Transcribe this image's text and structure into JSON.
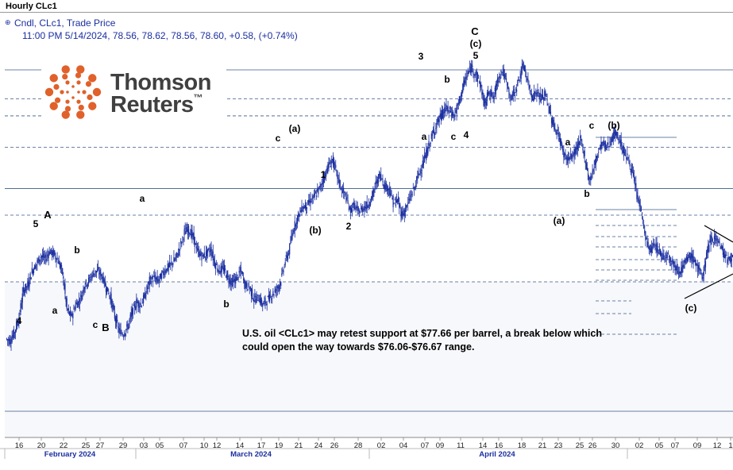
{
  "window": {
    "title": "Hourly CLc1"
  },
  "legend": {
    "line1": "Cndl, CLc1, Trade Price",
    "line2": "11:00 PM 5/14/2024, 78.56, 78.62, 78.56, 78.60, +0.58, (+0.74%)"
  },
  "logo": {
    "line1": "Thomson",
    "line2": "Reuters",
    "tm": "™"
  },
  "annotation": "U.S. oil <CLc1> may retest support at $77.66 per barrel, a break below which could open the way towards $76.06-$76.67 range.",
  "colors": {
    "candle": "#1b2fa0",
    "grid": "#3a5a8a",
    "logo_orange": "#e0612a"
  },
  "chart_data": {
    "type": "line",
    "title": "Hourly CLc1",
    "xlabel": "",
    "ylabel": "",
    "day_ticks": [
      "16",
      "20",
      "22",
      "25",
      "27",
      "29",
      "03",
      "05",
      "07",
      "10",
      "12",
      "14",
      "17",
      "19",
      "21",
      "24",
      "26",
      "28",
      "02",
      "04",
      "07",
      "09",
      "11",
      "14",
      "16",
      "18",
      "21",
      "23",
      "25",
      "26",
      "30",
      "02",
      "05",
      "07",
      "09",
      "12",
      "1"
    ],
    "month_labels": [
      "February 2024",
      "March 2024",
      "April 2024"
    ],
    "wave_labels": [
      "4",
      "5",
      "A",
      "a",
      "b",
      "c",
      "B",
      "a",
      "b",
      "c",
      "(a)",
      "1",
      "(b)",
      "2",
      "3",
      "a",
      "b",
      "c",
      "4",
      "C",
      "(c)",
      "5",
      "(a)",
      "a",
      "b",
      "c",
      "(b)",
      "(c)"
    ],
    "series": [
      {
        "values": [
          75.1,
          75.0,
          75.4,
          76.0,
          77.1,
          77.3,
          77.9,
          78.2,
          78.5,
          78.4,
          78.7,
          78.6,
          78.3,
          77.8,
          76.3,
          76.0,
          76.5,
          76.7,
          77.3,
          77.5,
          77.8,
          77.9,
          77.7,
          77.2,
          76.8,
          76.0,
          75.4,
          75.3,
          75.6,
          76.2,
          76.6,
          76.5,
          76.9,
          77.5,
          77.6,
          77.5,
          77.8,
          78.0,
          78.2,
          78.4,
          78.9,
          79.5,
          79.6,
          79.3,
          78.7,
          78.5,
          78.6,
          78.8,
          78.2,
          77.9,
          78.0,
          77.6,
          77.4,
          77.6,
          77.9,
          77.3,
          77.2,
          76.7,
          76.8,
          76.5,
          76.7,
          76.9,
          77.1,
          77.4,
          78.2,
          78.7,
          79.6,
          80.1,
          80.5,
          80.6,
          80.8,
          81.0,
          81.3,
          81.7,
          82.2,
          82.5,
          81.9,
          81.3,
          81.0,
          80.4,
          80.6,
          80.3,
          80.5,
          80.6,
          80.9,
          81.5,
          81.9,
          81.4,
          81.3,
          80.7,
          80.8,
          80.2,
          80.5,
          81.0,
          81.4,
          82.0,
          82.4,
          83.0,
          83.5,
          84.0,
          84.3,
          84.6,
          84.5,
          84.3,
          84.8,
          85.5,
          86.0,
          86.3,
          86.0,
          85.6,
          84.7,
          85.4,
          85.0,
          85.8,
          86.2,
          85.7,
          85.0,
          85.3,
          85.9,
          86.4,
          85.6,
          85.1,
          85.3,
          85.0,
          85.2,
          84.4,
          83.8,
          83.5,
          82.8,
          82.5,
          82.6,
          82.9,
          83.3,
          82.6,
          81.6,
          82.1,
          82.8,
          83.2,
          83.0,
          83.3,
          83.6,
          83.3,
          82.8,
          82.5,
          81.9,
          81.0,
          80.4,
          79.2,
          78.7,
          79.0,
          78.7,
          78.5,
          78.6,
          78.3,
          78.0,
          77.9,
          78.2,
          78.5,
          78.4,
          78.0,
          77.6,
          78.6,
          79.2,
          79.3,
          79.0,
          78.6,
          78.3,
          78.6
        ]
      }
    ],
    "hlines": [
      86.2,
      85.0,
      84.3,
      83.0,
      81.3,
      80.2,
      72.1
    ],
    "ylim": [
      70.5,
      87.5
    ]
  }
}
